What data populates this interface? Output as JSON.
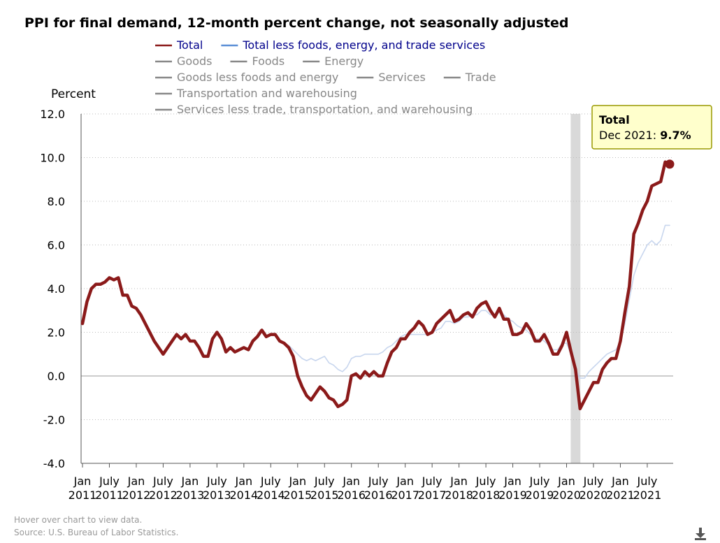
{
  "footer": {
    "hint": "Hover over chart to view data.",
    "source": "Source: U.S. Bureau of Labor Statistics."
  },
  "colors": {
    "total": "#8b1a1a",
    "core": "#c8d6ee",
    "legend_core_line": "#5b8fd6",
    "legend_core_text": "#00008b",
    "legend_inactive": "#888888",
    "recession": "#d9d9d9",
    "tooltip_bg": "#ffffcc",
    "tooltip_border": "#999900"
  },
  "chart_data": {
    "type": "line",
    "title": "PPI for final demand, 12-month percent change, not seasonally adjusted",
    "ylabel": "Percent",
    "ylim": [
      -4.0,
      12.0
    ],
    "yticks": [
      "12.0",
      "10.0",
      "8.0",
      "6.0",
      "4.0",
      "2.0",
      "0.0",
      "-2.0",
      "-4.0"
    ],
    "x_tick_labels": [
      [
        "Jan",
        "2011"
      ],
      [
        "July",
        "2011"
      ],
      [
        "Jan",
        "2012"
      ],
      [
        "July",
        "2012"
      ],
      [
        "Jan",
        "2013"
      ],
      [
        "July",
        "2013"
      ],
      [
        "Jan",
        "2014"
      ],
      [
        "July",
        "2014"
      ],
      [
        "Jan",
        "2015"
      ],
      [
        "July",
        "2015"
      ],
      [
        "Jan",
        "2016"
      ],
      [
        "July",
        "2016"
      ],
      [
        "Jan",
        "2017"
      ],
      [
        "July",
        "2017"
      ],
      [
        "Jan",
        "2018"
      ],
      [
        "July",
        "2018"
      ],
      [
        "Jan",
        "2019"
      ],
      [
        "July",
        "2019"
      ],
      [
        "Jan",
        "2020"
      ],
      [
        "July",
        "2020"
      ],
      [
        "Jan",
        "2021"
      ],
      [
        "July",
        "2021"
      ]
    ],
    "x_start": "2011-01",
    "x_end": "2021-12",
    "grid": "horizontal dotted",
    "legend_position": "top",
    "legend": [
      {
        "name": "Total",
        "active": true
      },
      {
        "name": "Total less foods, energy, and trade services",
        "active": true
      },
      {
        "name": "Goods",
        "active": false
      },
      {
        "name": "Foods",
        "active": false
      },
      {
        "name": "Energy",
        "active": false
      },
      {
        "name": "Goods less foods and energy",
        "active": false
      },
      {
        "name": "Services",
        "active": false
      },
      {
        "name": "Trade",
        "active": false
      },
      {
        "name": "Transportation and warehousing",
        "active": false
      },
      {
        "name": "Services less trade, transportation, and warehousing",
        "active": false
      }
    ],
    "recession_shading": {
      "start": "2020-02",
      "end": "2020-04"
    },
    "tooltip": {
      "series": "Total",
      "label": "Dec 2021: ",
      "value": "9.7%"
    },
    "series": [
      {
        "name": "Total",
        "values": [
          2.4,
          3.4,
          4.0,
          4.2,
          4.2,
          4.3,
          4.5,
          4.4,
          4.5,
          3.7,
          3.7,
          3.2,
          3.1,
          2.8,
          2.4,
          2.0,
          1.6,
          1.3,
          1.0,
          1.3,
          1.6,
          1.9,
          1.7,
          1.9,
          1.6,
          1.6,
          1.3,
          0.9,
          0.9,
          1.7,
          2.0,
          1.7,
          1.1,
          1.3,
          1.1,
          1.2,
          1.3,
          1.2,
          1.6,
          1.8,
          2.1,
          1.8,
          1.9,
          1.9,
          1.6,
          1.5,
          1.3,
          0.9,
          0.0,
          -0.5,
          -0.9,
          -1.1,
          -0.8,
          -0.5,
          -0.7,
          -1.0,
          -1.1,
          -1.4,
          -1.3,
          -1.1,
          0.0,
          0.1,
          -0.1,
          0.2,
          0.0,
          0.2,
          0.0,
          0.0,
          0.6,
          1.1,
          1.3,
          1.7,
          1.7,
          2.0,
          2.2,
          2.5,
          2.3,
          1.9,
          2.0,
          2.4,
          2.6,
          2.8,
          3.0,
          2.5,
          2.6,
          2.8,
          2.9,
          2.7,
          3.1,
          3.3,
          3.4,
          3.0,
          2.7,
          3.1,
          2.6,
          2.6,
          1.9,
          1.9,
          2.0,
          2.4,
          2.1,
          1.6,
          1.6,
          1.9,
          1.5,
          1.0,
          1.0,
          1.4,
          2.0,
          1.1,
          0.3,
          -1.5,
          -1.1,
          -0.7,
          -0.3,
          -0.3,
          0.3,
          0.6,
          0.8,
          0.8,
          1.6,
          2.9,
          4.1,
          6.5,
          7.0,
          7.6,
          8.0,
          8.7,
          8.8,
          8.9,
          9.8,
          9.7
        ]
      },
      {
        "name": "Total less foods, energy, and trade services",
        "values": [
          2.4,
          3.3,
          4.0,
          4.2,
          4.2,
          4.3,
          4.5,
          4.4,
          4.5,
          3.7,
          3.7,
          3.2,
          3.1,
          2.8,
          2.4,
          2.0,
          1.6,
          1.3,
          1.0,
          1.3,
          1.6,
          1.9,
          1.7,
          1.9,
          1.6,
          1.6,
          1.3,
          0.9,
          0.9,
          1.7,
          2.0,
          1.7,
          1.1,
          1.3,
          1.1,
          1.2,
          1.3,
          1.2,
          1.6,
          1.8,
          2.1,
          1.8,
          1.9,
          1.9,
          1.6,
          1.5,
          1.4,
          1.2,
          1.0,
          0.8,
          0.7,
          0.8,
          0.7,
          0.8,
          0.9,
          0.6,
          0.5,
          0.3,
          0.2,
          0.4,
          0.8,
          0.9,
          0.9,
          1.0,
          1.0,
          1.0,
          1.0,
          1.1,
          1.3,
          1.4,
          1.6,
          1.8,
          1.9,
          1.9,
          1.9,
          1.9,
          1.9,
          1.9,
          2.0,
          2.1,
          2.2,
          2.5,
          2.5,
          2.4,
          2.5,
          2.7,
          2.7,
          2.8,
          2.8,
          3.0,
          3.0,
          2.8,
          2.8,
          2.9,
          2.8,
          2.6,
          2.5,
          2.3,
          2.2,
          2.1,
          1.9,
          1.7,
          1.7,
          1.6,
          1.4,
          1.2,
          1.2,
          1.5,
          1.5,
          1.0,
          0.3,
          -0.1,
          -0.1,
          0.2,
          0.4,
          0.6,
          0.8,
          1.0,
          1.1,
          1.2,
          1.6,
          2.4,
          3.5,
          4.6,
          5.2,
          5.6,
          6.0,
          6.2,
          6.0,
          6.2,
          6.9,
          6.9
        ]
      }
    ]
  }
}
